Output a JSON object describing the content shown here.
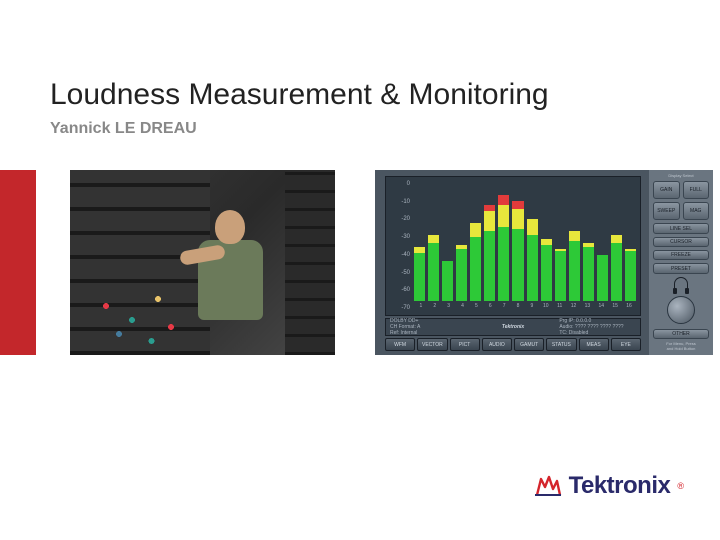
{
  "title": "Loudness Measurement & Monitoring",
  "author": "Yannick LE DREAU",
  "colors": {
    "slide_bg": "#ffffff",
    "page_bg": "#faf4e8",
    "accent_bar": "#c3272b",
    "title_color": "#222222",
    "author_color": "#888888",
    "logo_text": "#2a2a6a",
    "logo_mark": "#d4252c"
  },
  "logo": {
    "text": "Tektronix",
    "registered": "®"
  },
  "audio_chart": {
    "type": "bar",
    "panel_bg": "#2f3a44",
    "outer_bg": "#4a5560",
    "green": "#2dc937",
    "yellow": "#e7e73c",
    "red": "#e23b3b",
    "tick_color": "#aab4bf",
    "y_ticks": [
      "0",
      "-10",
      "-20",
      "-30",
      "-40",
      "-50",
      "-60",
      "-70"
    ],
    "y_range_db": [
      -70,
      0
    ],
    "channels": [
      "1",
      "2",
      "3",
      "4",
      "5",
      "6",
      "7",
      "8",
      "9",
      "10",
      "11",
      "12",
      "13",
      "14",
      "15",
      "16"
    ],
    "bars": [
      {
        "green": 48,
        "yellow": 6,
        "red": 0
      },
      {
        "green": 58,
        "yellow": 8,
        "red": 0
      },
      {
        "green": 40,
        "yellow": 0,
        "red": 0
      },
      {
        "green": 52,
        "yellow": 4,
        "red": 0
      },
      {
        "green": 64,
        "yellow": 14,
        "red": 0
      },
      {
        "green": 70,
        "yellow": 20,
        "red": 6
      },
      {
        "green": 74,
        "yellow": 22,
        "red": 10
      },
      {
        "green": 72,
        "yellow": 20,
        "red": 8
      },
      {
        "green": 66,
        "yellow": 16,
        "red": 0
      },
      {
        "green": 56,
        "yellow": 6,
        "red": 0
      },
      {
        "green": 50,
        "yellow": 2,
        "red": 0
      },
      {
        "green": 60,
        "yellow": 10,
        "red": 0
      },
      {
        "green": 54,
        "yellow": 4,
        "red": 0
      },
      {
        "green": 46,
        "yellow": 0,
        "red": 0
      },
      {
        "green": 58,
        "yellow": 8,
        "red": 0
      },
      {
        "green": 50,
        "yellow": 2,
        "red": 0
      }
    ],
    "status": {
      "left1": "DOLBY DD+",
      "left2": "CH Format: A",
      "left3": "Ref: Internal",
      "center_brand": "Tektronix",
      "right1": "Prg IP: 0.0.0.0",
      "right2": "Audio: ???? ???? ???? ????",
      "right3": "TC: Disabled"
    },
    "menu": [
      "WFM",
      "VECTOR",
      "PICT",
      "AUDIO",
      "GAMUT",
      "STATUS",
      "MEAS",
      "EYE"
    ]
  },
  "side_panel": {
    "bg": "#6a7580",
    "btn_top": "#8a95a0",
    "btn_bot": "#5a6570",
    "header": "Display Select",
    "buttons_top": [
      "GAIN",
      "FULL"
    ],
    "buttons_mid": [
      "SWEEP",
      "MAG"
    ],
    "buttons_l": [
      "LINE SEL",
      "CURSOR",
      "FREEZE",
      "PRESET"
    ],
    "btn_other": "OTHER",
    "footer": "For Menu, Press\nand Hold Button"
  }
}
